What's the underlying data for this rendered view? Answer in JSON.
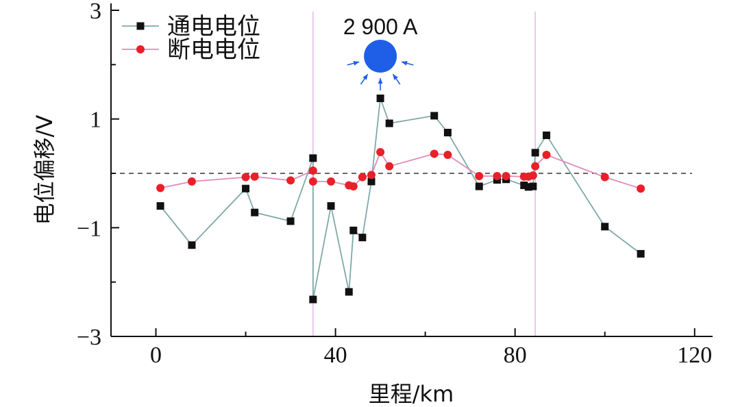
{
  "chart_data": {
    "type": "line",
    "xlabel": "里程/km",
    "ylabel": "电位偏移/V",
    "xlim": [
      -10,
      124
    ],
    "ylim": [
      -3,
      3
    ],
    "x_ticks": [
      0,
      40,
      80,
      120
    ],
    "x_tick_labels": [
      "0",
      "40",
      "80",
      "120"
    ],
    "y_ticks": [
      -3,
      -1,
      1,
      3
    ],
    "y_tick_labels": [
      "−3",
      "−1",
      "1",
      "3"
    ],
    "y_minor_ticks": [
      -2,
      0,
      2
    ],
    "x_minor_ticks": [
      20,
      60,
      100
    ],
    "legend_position": "top-left",
    "reference_line": {
      "y": 0,
      "style": "dashed"
    },
    "vertical_markers": [
      35,
      84.5
    ],
    "annotation": {
      "text": "2 900 A",
      "x": 50
    },
    "series": [
      {
        "name": "通电电位",
        "color": "#7fa8a8",
        "marker": "square",
        "marker_color": "#111111",
        "x": [
          1,
          8,
          20,
          22,
          30,
          35,
          35,
          39,
          43,
          44,
          46,
          48,
          50,
          52,
          62,
          65,
          72,
          76,
          78,
          82,
          83,
          84,
          84.5,
          87,
          100,
          108
        ],
        "y": [
          -0.6,
          -1.32,
          -0.28,
          -0.72,
          -0.88,
          0.28,
          -2.32,
          -0.6,
          -2.18,
          -1.05,
          -1.18,
          -0.15,
          1.38,
          0.92,
          1.06,
          0.75,
          -0.24,
          -0.12,
          -0.11,
          -0.22,
          -0.25,
          -0.24,
          0.38,
          0.7,
          -0.98,
          -1.48
        ]
      },
      {
        "name": "断电电位",
        "color": "#e08ab8",
        "marker": "circle",
        "marker_color": "#e8202a",
        "x": [
          1,
          8,
          20,
          22,
          30,
          35,
          35,
          39,
          43,
          44,
          46,
          48,
          50,
          52,
          62,
          65,
          72,
          76,
          78,
          82,
          83,
          84,
          84.5,
          87,
          100,
          108
        ],
        "y": [
          -0.27,
          -0.15,
          -0.07,
          -0.06,
          -0.13,
          0.05,
          -0.15,
          -0.15,
          -0.22,
          -0.24,
          -0.07,
          -0.03,
          0.39,
          0.13,
          0.36,
          0.34,
          -0.05,
          -0.05,
          -0.05,
          -0.06,
          -0.06,
          -0.04,
          0.13,
          0.34,
          -0.07,
          -0.28
        ]
      }
    ]
  }
}
